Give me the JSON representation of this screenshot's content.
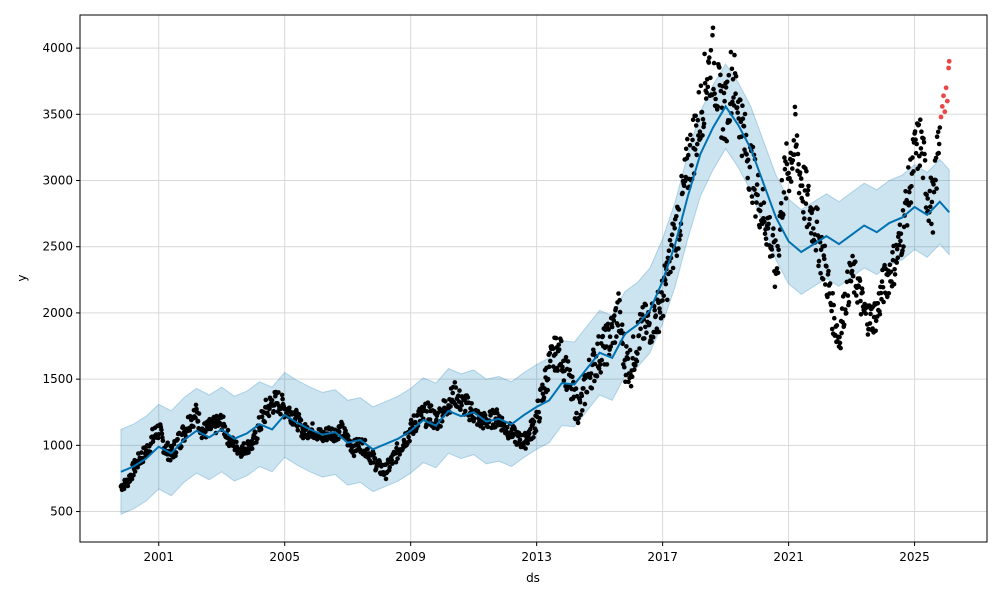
{
  "chart_data": {
    "type": "scatter",
    "title": "",
    "xlabel": "ds",
    "ylabel": "y",
    "xlim": [
      1998.5,
      2027.3
    ],
    "ylim": [
      270,
      4250
    ],
    "grid": true,
    "x_ticks": [
      2001,
      2005,
      2009,
      2013,
      2017,
      2021,
      2025
    ],
    "x_tick_labels": [
      "2001",
      "2005",
      "2009",
      "2013",
      "2017",
      "2021",
      "2025"
    ],
    "y_ticks": [
      500,
      1000,
      1500,
      2000,
      2500,
      3000,
      3500,
      4000
    ],
    "y_tick_labels": [
      "500",
      "1000",
      "1500",
      "2000",
      "2500",
      "3000",
      "3500",
      "4000"
    ],
    "colors": {
      "observed": "#000000",
      "forecast_line": "#0072B2",
      "uncertainty_band": "#0072B2",
      "anomaly": "#E41A1C",
      "grid": "#d9d9d9"
    },
    "series": [
      {
        "role": "forecast",
        "x": [
          1999.8,
          2000.2,
          2000.6,
          2001.0,
          2001.4,
          2001.8,
          2002.2,
          2002.6,
          2003.0,
          2003.4,
          2003.8,
          2004.2,
          2004.6,
          2005.0,
          2005.4,
          2005.8,
          2006.2,
          2006.6,
          2007.0,
          2007.4,
          2007.8,
          2008.2,
          2008.6,
          2009.0,
          2009.4,
          2009.8,
          2010.2,
          2010.6,
          2011.0,
          2011.4,
          2011.8,
          2012.2,
          2012.6,
          2013.0,
          2013.4,
          2013.8,
          2014.2,
          2014.6,
          2015.0,
          2015.4,
          2015.8,
          2016.2,
          2016.6,
          2017.0,
          2017.4,
          2017.8,
          2018.2,
          2018.6,
          2019.0,
          2019.4,
          2019.8,
          2020.2,
          2020.6,
          2021.0,
          2021.4,
          2021.8,
          2022.2,
          2022.6,
          2023.0,
          2023.4,
          2023.8,
          2024.2,
          2024.6,
          2025.0,
          2025.4,
          2025.8,
          2026.1
        ],
        "y": [
          800,
          840,
          900,
          990,
          940,
          1040,
          1110,
          1060,
          1120,
          1050,
          1090,
          1160,
          1120,
          1230,
          1170,
          1120,
          1080,
          1100,
          1020,
          1040,
          970,
          1010,
          1050,
          1110,
          1190,
          1150,
          1260,
          1220,
          1250,
          1180,
          1200,
          1160,
          1230,
          1290,
          1340,
          1470,
          1460,
          1580,
          1700,
          1660,
          1840,
          1910,
          2020,
          2240,
          2520,
          2880,
          3200,
          3400,
          3560,
          3420,
          3240,
          2980,
          2720,
          2540,
          2460,
          2520,
          2580,
          2520,
          2590,
          2660,
          2610,
          2680,
          2720,
          2800,
          2740,
          2840,
          2760
        ],
        "lower": [
          480,
          520,
          580,
          670,
          620,
          720,
          790,
          740,
          800,
          730,
          770,
          840,
          800,
          910,
          850,
          800,
          760,
          780,
          700,
          720,
          650,
          690,
          730,
          790,
          870,
          830,
          940,
          900,
          930,
          860,
          880,
          840,
          910,
          970,
          1020,
          1150,
          1140,
          1260,
          1380,
          1340,
          1520,
          1590,
          1700,
          1920,
          2200,
          2560,
          2880,
          3080,
          3240,
          3100,
          2920,
          2660,
          2400,
          2220,
          2140,
          2200,
          2260,
          2200,
          2270,
          2340,
          2290,
          2360,
          2400,
          2480,
          2420,
          2520,
          2440
        ],
        "upper": [
          1120,
          1160,
          1220,
          1310,
          1260,
          1360,
          1430,
          1380,
          1440,
          1370,
          1410,
          1480,
          1440,
          1550,
          1490,
          1440,
          1400,
          1420,
          1340,
          1360,
          1290,
          1330,
          1370,
          1430,
          1510,
          1470,
          1580,
          1540,
          1570,
          1500,
          1520,
          1480,
          1550,
          1610,
          1660,
          1790,
          1780,
          1900,
          2020,
          1980,
          2160,
          2230,
          2340,
          2560,
          2840,
          3200,
          3520,
          3720,
          3880,
          3740,
          3560,
          3300,
          3040,
          2860,
          2780,
          2840,
          2900,
          2840,
          2910,
          2980,
          2930,
          3000,
          3040,
          3120,
          3060,
          3160,
          3080
        ]
      },
      {
        "role": "observed",
        "x": [
          1999.8,
          2000.0,
          2000.2,
          2000.4,
          2000.6,
          2000.8,
          2001.0,
          2001.2,
          2001.4,
          2001.6,
          2001.8,
          2002.0,
          2002.2,
          2002.4,
          2002.6,
          2002.8,
          2003.0,
          2003.2,
          2003.4,
          2003.6,
          2003.8,
          2004.0,
          2004.2,
          2004.4,
          2004.6,
          2004.8,
          2005.0,
          2005.2,
          2005.4,
          2005.6,
          2005.8,
          2006.0,
          2006.2,
          2006.4,
          2006.6,
          2006.8,
          2007.0,
          2007.2,
          2007.4,
          2007.6,
          2007.8,
          2008.0,
          2008.2,
          2008.4,
          2008.6,
          2008.8,
          2009.0,
          2009.2,
          2009.4,
          2009.6,
          2009.8,
          2010.0,
          2010.2,
          2010.4,
          2010.6,
          2010.8,
          2011.0,
          2011.2,
          2011.4,
          2011.6,
          2011.8,
          2012.0,
          2012.2,
          2012.4,
          2012.6,
          2012.8,
          2013.0,
          2013.2,
          2013.4,
          2013.6,
          2013.8,
          2014.0,
          2014.2,
          2014.4,
          2014.6,
          2014.8,
          2015.0,
          2015.2,
          2015.4,
          2015.6,
          2015.8,
          2016.0,
          2016.2,
          2016.4,
          2016.6,
          2016.8,
          2017.0,
          2017.2,
          2017.4,
          2017.6,
          2017.8,
          2018.0,
          2018.2,
          2018.4,
          2018.6,
          2018.8,
          2019.0,
          2019.2,
          2019.4,
          2019.6,
          2019.8,
          2020.0,
          2020.2,
          2020.4,
          2020.6,
          2020.8,
          2021.0,
          2021.2,
          2021.4,
          2021.6,
          2021.8,
          2022.0,
          2022.2,
          2022.4,
          2022.6,
          2022.8,
          2023.0,
          2023.2,
          2023.4,
          2023.6,
          2023.8,
          2024.0,
          2024.2,
          2024.4,
          2024.6,
          2024.8,
          2025.0,
          2025.2,
          2025.4,
          2025.6,
          2025.8
        ],
        "y": [
          690,
          720,
          820,
          900,
          950,
          1050,
          1120,
          980,
          930,
          1020,
          1100,
          1200,
          1240,
          1100,
          1130,
          1150,
          1180,
          1060,
          1000,
          960,
          990,
          1010,
          1150,
          1260,
          1320,
          1330,
          1280,
          1250,
          1190,
          1100,
          1120,
          1100,
          1060,
          1100,
          1090,
          1120,
          1040,
          980,
          1010,
          970,
          900,
          830,
          800,
          880,
          960,
          1050,
          1110,
          1200,
          1220,
          1240,
          1180,
          1250,
          1320,
          1390,
          1320,
          1290,
          1240,
          1190,
          1180,
          1200,
          1210,
          1130,
          1100,
          1050,
          1020,
          1100,
          1200,
          1400,
          1600,
          1700,
          1680,
          1500,
          1330,
          1270,
          1500,
          1600,
          1700,
          1750,
          1850,
          2000,
          1650,
          1600,
          1800,
          1900,
          1920,
          1980,
          2100,
          2350,
          2600,
          2800,
          3100,
          3300,
          3500,
          3800,
          3900,
          3600,
          3500,
          3800,
          3600,
          3300,
          3100,
          2900,
          2750,
          2600,
          2300,
          2900,
          3100,
          3300,
          3000,
          2800,
          2700,
          2500,
          2300,
          2000,
          1800,
          2100,
          2300,
          2200,
          2000,
          1950,
          2000,
          2200,
          2300,
          2400,
          2600,
          2900,
          3200,
          3300,
          2900,
          2800,
          3400
        ],
        "spread": [
          40,
          40,
          60,
          60,
          60,
          80,
          80,
          70,
          60,
          80,
          80,
          80,
          80,
          70,
          70,
          70,
          70,
          60,
          50,
          50,
          50,
          60,
          80,
          90,
          90,
          90,
          80,
          80,
          70,
          60,
          60,
          60,
          60,
          60,
          60,
          60,
          60,
          60,
          60,
          60,
          60,
          60,
          60,
          60,
          70,
          80,
          80,
          90,
          90,
          90,
          90,
          90,
          90,
          90,
          90,
          90,
          80,
          70,
          70,
          70,
          70,
          70,
          60,
          60,
          60,
          80,
          110,
          130,
          140,
          130,
          130,
          140,
          130,
          130,
          140,
          150,
          160,
          160,
          170,
          180,
          170,
          160,
          170,
          170,
          170,
          170,
          180,
          200,
          220,
          240,
          250,
          260,
          260,
          270,
          270,
          260,
          250,
          270,
          260,
          240,
          230,
          220,
          210,
          200,
          230,
          250,
          260,
          260,
          250,
          240,
          220,
          200,
          180,
          150,
          140,
          150,
          160,
          150,
          140,
          130,
          140,
          150,
          160,
          170,
          180,
          200,
          210,
          220,
          210,
          200,
          230
        ]
      },
      {
        "role": "anomaly",
        "x": [
          2025.84,
          2025.88,
          2025.92,
          2025.96,
          2026.0,
          2026.04,
          2026.08,
          2026.1
        ],
        "y": [
          3480,
          3560,
          3640,
          3520,
          3700,
          3600,
          3850,
          3900
        ]
      }
    ]
  }
}
